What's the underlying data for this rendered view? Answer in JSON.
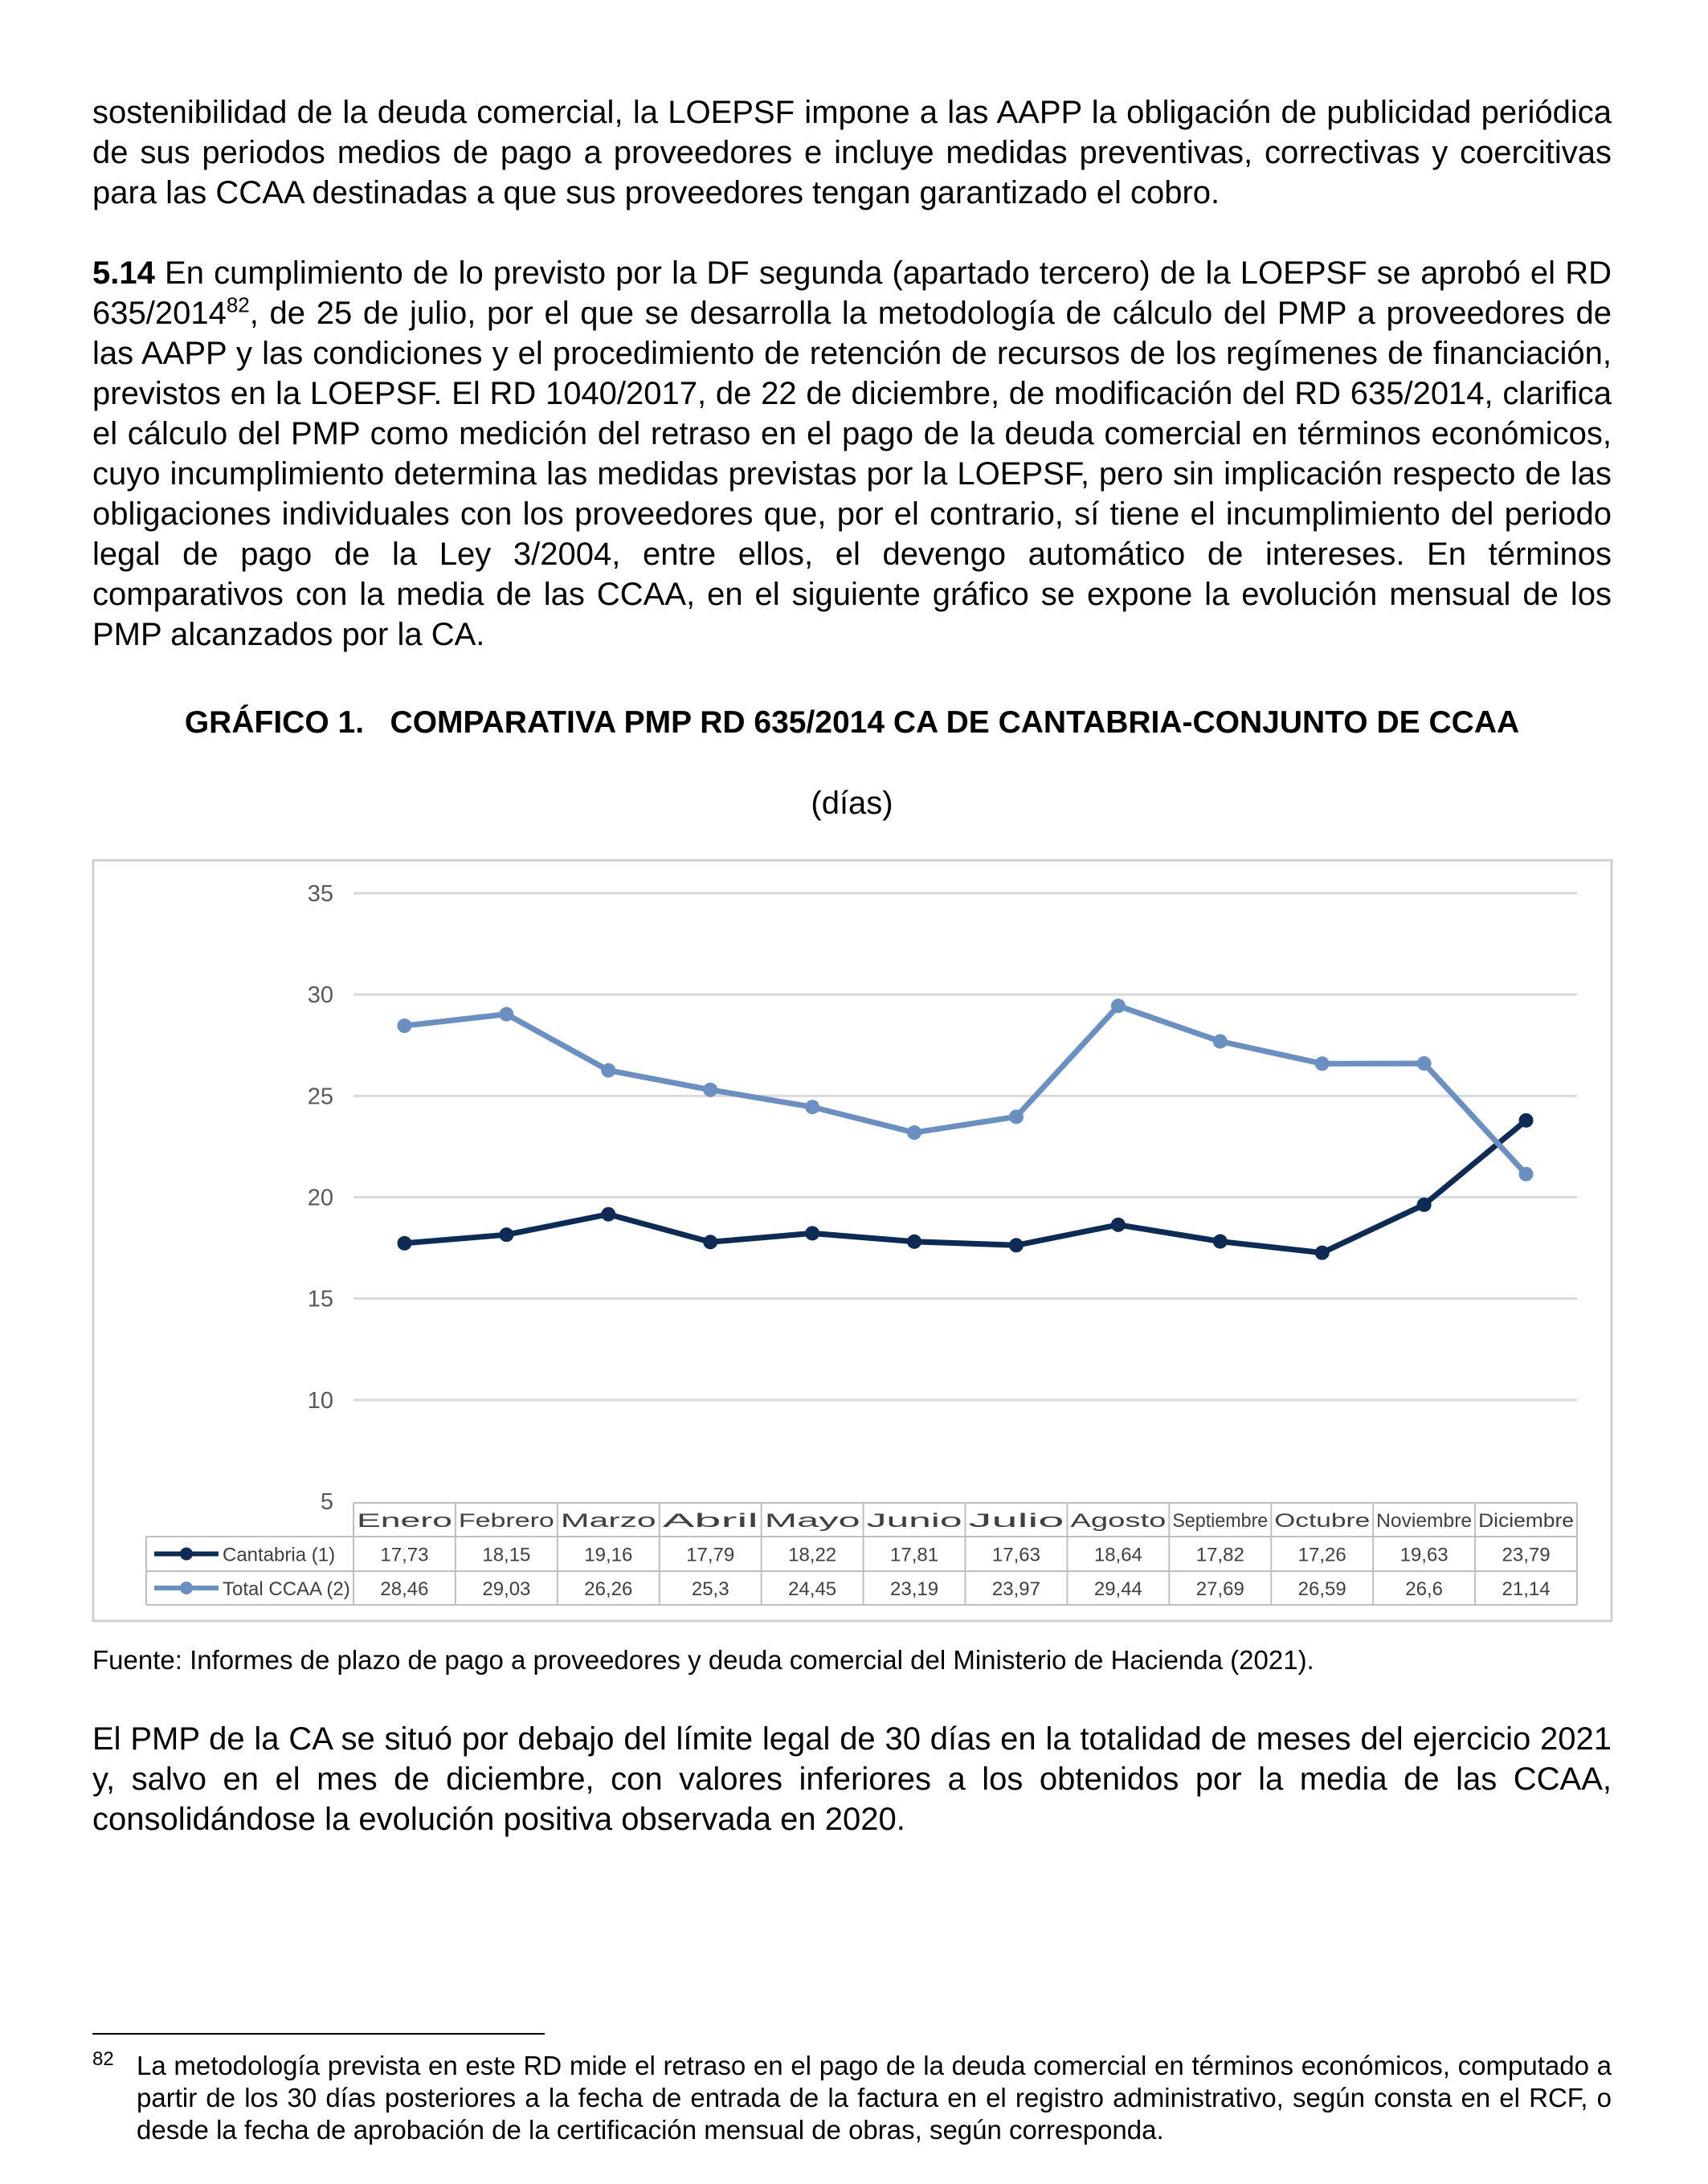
{
  "paragraph_1": "sostenibilidad de la deuda comercial, la LOEPSF impone a las AAPP la obligación de publicidad periódica de sus periodos medios de pago a proveedores e incluye medidas preventivas, correctivas y coercitivas para las CCAA destinadas a que sus proveedores tengan garantizado el cobro.",
  "paragraph_2": {
    "number": "5.14",
    "text_before_note": "En cumplimiento de lo previsto por la DF segunda (apartado tercero) de la LOEPSF se aprobó el RD 635/2014",
    "note_ref": "82",
    "text_after_note": ", de 25 de julio, por el que se desarrolla la metodología de cálculo del PMP a proveedores de las AAPP y las condiciones y el procedimiento de retención de recursos de los regímenes de financiación, previstos en la LOEPSF. El RD 1040/2017, de 22 de diciembre, de modificación del RD 635/2014, clarifica el cálculo del PMP como medición del retraso en el pago de la deuda comercial en términos económicos, cuyo incumplimiento determina las medidas previstas por la LOEPSF, pero sin implicación respecto de las obligaciones individuales con los proveedores que, por el contrario, sí tiene el incumplimiento del periodo legal de pago de la Ley 3/2004, entre ellos, el devengo automático de intereses. En términos comparativos con la media de las CCAA, en el siguiente gráfico se expone la evolución mensual de los PMP alcanzados por la CA."
  },
  "chart_data": {
    "type": "line",
    "title": "GRÁFICO 1.   COMPARATIVA PMP RD 635/2014 CA DE CANTABRIA-CONJUNTO DE CCAA",
    "subtitle": "(días)",
    "categories": [
      "Enero",
      "Febrero",
      "Marzo",
      "Abril",
      "Mayo",
      "Junio",
      "Julio",
      "Agosto",
      "Septiembre",
      "Octubre",
      "Noviembre",
      "Diciembre"
    ],
    "series": [
      {
        "name": "Cantabria (1)",
        "color": "#0e2b56",
        "values": [
          17.73,
          18.15,
          19.16,
          17.79,
          18.22,
          17.81,
          17.63,
          18.64,
          17.82,
          17.26,
          19.63,
          23.79
        ],
        "value_labels": [
          "17,73",
          "18,15",
          "19,16",
          "17,79",
          "18,22",
          "17,81",
          "17,63",
          "18,64",
          "17,82",
          "17,26",
          "19,63",
          "23,79"
        ]
      },
      {
        "name": "Total CCAA (2)",
        "color": "#6b8fc0",
        "values": [
          28.46,
          29.03,
          26.26,
          25.3,
          24.45,
          23.19,
          23.97,
          29.44,
          27.69,
          26.59,
          26.6,
          21.14
        ],
        "value_labels": [
          "28,46",
          "29,03",
          "26,26",
          "25,3",
          "24,45",
          "23,19",
          "23,97",
          "29,44",
          "27,69",
          "26,59",
          "26,6",
          "21,14"
        ]
      }
    ],
    "ylim": [
      5,
      35
    ],
    "yticks": [
      5,
      10,
      15,
      20,
      25,
      30,
      35
    ],
    "grid": true,
    "source": "Fuente: Informes de plazo de pago a proveedores y deuda comercial del Ministerio de Hacienda (2021)."
  },
  "paragraph_3": "El PMP de la CA se situó por debajo del límite legal de 30 días en la totalidad de meses del ejercicio 2021 y, salvo en el mes de diciembre, con valores inferiores a los obtenidos por la media de las CCAA, consolidándose la evolución positiva observada en 2020.",
  "footnote": {
    "number": "82",
    "text": "La metodología prevista en este RD mide el retraso en el pago de la deuda comercial en términos económicos, computado a partir de los 30 días posteriores a la fecha de entrada de la factura en el registro administrativo, según consta en el RCF, o desde la fecha de aprobación de la certificación mensual de obras, según corresponda."
  }
}
